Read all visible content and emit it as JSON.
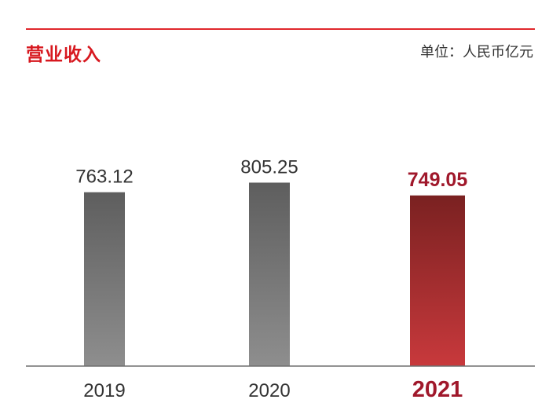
{
  "header": {
    "title": "营业收入",
    "unit": "单位：人民币亿元"
  },
  "colors": {
    "accent": "#d7181f",
    "rule": "#e0282d",
    "bar_dark": "#5e5e5e",
    "bar_light": "#8e8e8e",
    "highlight_dark": "#7a2121",
    "highlight_light": "#c8393c",
    "highlight_text": "#a0182b",
    "axis": "#6f6f6f"
  },
  "chart_data": {
    "type": "bar",
    "categories": [
      "2019",
      "2020",
      "2021"
    ],
    "values": [
      763.12,
      805.25,
      749.05
    ],
    "value_labels": [
      "763.12",
      "805.25",
      "749.05"
    ],
    "highlight_index": 2,
    "ylim": [
      0,
      1600
    ],
    "grid": false,
    "legend": "none"
  }
}
